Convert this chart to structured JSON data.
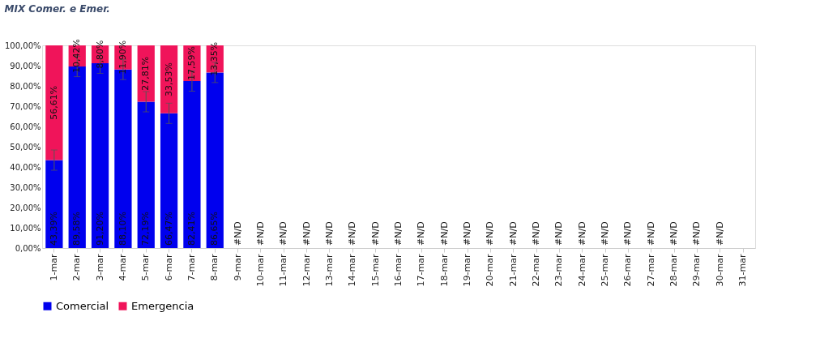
{
  "chart_data": {
    "type": "bar",
    "title": "MIX Comer. e Emer.",
    "stacked": true,
    "categories": [
      "1-mar",
      "2-mar",
      "3-mar",
      "4-mar",
      "5-mar",
      "6-mar",
      "7-mar",
      "8-mar",
      "9-mar",
      "10-mar",
      "11-mar",
      "12-mar",
      "13-mar",
      "14-mar",
      "15-mar",
      "16-mar",
      "17-mar",
      "18-mar",
      "19-mar",
      "20-mar",
      "21-mar",
      "22-mar",
      "23-mar",
      "24-mar",
      "25-mar",
      "26-mar",
      "27-mar",
      "28-mar",
      "29-mar",
      "30-mar",
      "31-mar"
    ],
    "series": [
      {
        "name": "Comercial",
        "color": "#0000ee",
        "values": [
          43.39,
          89.58,
          91.2,
          88.1,
          72.19,
          66.47,
          82.41,
          86.65,
          null,
          null,
          null,
          null,
          null,
          null,
          null,
          null,
          null,
          null,
          null,
          null,
          null,
          null,
          null,
          null,
          null,
          null,
          null,
          null,
          null,
          null,
          null
        ],
        "errors": [
          5,
          5,
          5,
          5,
          5,
          5,
          5,
          5,
          null,
          null,
          null,
          null,
          null,
          null,
          null,
          null,
          null,
          null,
          null,
          null,
          null,
          null,
          null,
          null,
          null,
          null,
          null,
          null,
          null,
          null,
          null
        ],
        "value_labels": [
          "43,39%",
          "89,58%",
          "91,20%",
          "88,10%",
          "72,19%",
          "66,47%",
          "82,41%",
          "86,65%",
          "#N/D",
          "#N/D",
          "#N/D",
          "#N/D",
          "#N/D",
          "#N/D",
          "#N/D",
          "#N/D",
          "#N/D",
          "#N/D",
          "#N/D",
          "#N/D",
          "#N/D",
          "#N/D",
          "#N/D",
          "#N/D",
          "#N/D",
          "#N/D",
          "#N/D",
          "#N/D",
          "#N/D",
          "#N/D",
          null
        ]
      },
      {
        "name": "Emergencia",
        "color": "#f0145a",
        "values": [
          56.61,
          10.42,
          8.8,
          11.9,
          27.81,
          33.53,
          17.59,
          13.35,
          null,
          null,
          null,
          null,
          null,
          null,
          null,
          null,
          null,
          null,
          null,
          null,
          null,
          null,
          null,
          null,
          null,
          null,
          null,
          null,
          null,
          null,
          null
        ],
        "value_labels": [
          "56,61%",
          "10,42%",
          "8,80%",
          "11,90%",
          "27,81%",
          "33,53%",
          "17,59%",
          "13,35%",
          null,
          null,
          null,
          null,
          null,
          null,
          null,
          null,
          null,
          null,
          null,
          null,
          null,
          null,
          null,
          null,
          null,
          null,
          null,
          null,
          null,
          null,
          null
        ]
      }
    ],
    "ylim": [
      0,
      100
    ],
    "yticks": [
      {
        "value": 0,
        "label": "0,00%"
      },
      {
        "value": 10,
        "label": "10,00%"
      },
      {
        "value": 20,
        "label": "20,00%"
      },
      {
        "value": 30,
        "label": "30,00%"
      },
      {
        "value": 40,
        "label": "40,00%"
      },
      {
        "value": 50,
        "label": "50,00%"
      },
      {
        "value": 60,
        "label": "60,00%"
      },
      {
        "value": 70,
        "label": "70,00%"
      },
      {
        "value": 80,
        "label": "80,00%"
      },
      {
        "value": 90,
        "label": "90,00%"
      },
      {
        "value": 100,
        "label": "100,00%"
      }
    ],
    "legend": "bottom",
    "grid": false
  }
}
